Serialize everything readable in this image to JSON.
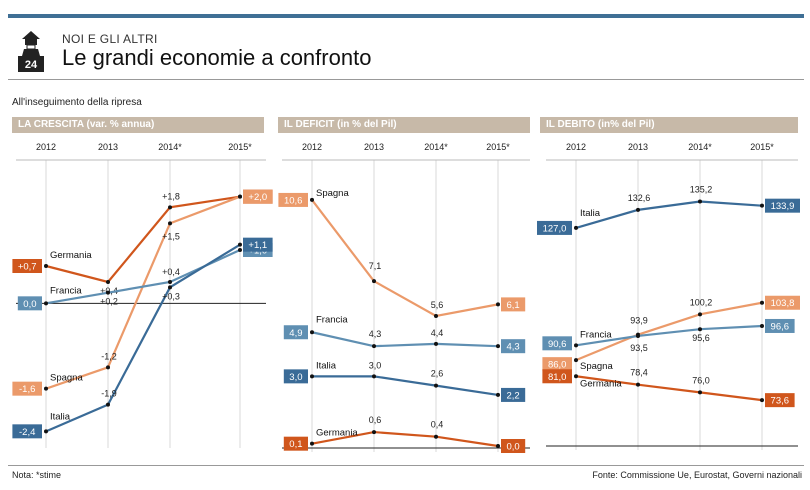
{
  "header": {
    "logo_number": "24",
    "kicker": "NOI E GLI ALTRI",
    "title": "Le grandi economie a confronto",
    "subtitle": "All'inseguimento della ripresa"
  },
  "footer": {
    "note": "Nota: *stime",
    "source": "Fonte: Commissione Ue, Eurostat, Governi nazionali"
  },
  "colors": {
    "header_bar": "#c7b9a8",
    "germania": "#d0561c",
    "spagna": "#eb9a6a",
    "francia": "#5f8fb2",
    "italia": "#3a6b97"
  },
  "chart_data": [
    {
      "type": "line",
      "title": "LA CRESCITA (var. % annua)",
      "categories": [
        "2012",
        "2013",
        "2014*",
        "2015*"
      ],
      "ylim": [
        -2.6,
        2.2
      ],
      "zero_line": true,
      "series": [
        {
          "name": "Germania",
          "color": "#d0561c",
          "values": [
            0.7,
            0.4,
            1.8,
            2.0
          ],
          "labels": [
            "+0,7",
            "+0,4",
            "+1,8",
            "+2,0"
          ]
        },
        {
          "name": "Spagna",
          "color": "#eb9a6a",
          "values": [
            -1.6,
            -1.2,
            1.5,
            2.0
          ],
          "labels": [
            "-1,6",
            "-1,2",
            "+1,5",
            "+2,0"
          ]
        },
        {
          "name": "Francia",
          "color": "#5f8fb2",
          "values": [
            0.0,
            0.2,
            0.4,
            1.0
          ],
          "labels": [
            "0,0",
            "+0,2",
            "+0,4",
            "+1,0"
          ]
        },
        {
          "name": "Italia",
          "color": "#3a6b97",
          "values": [
            -2.4,
            -1.9,
            0.3,
            1.1
          ],
          "labels": [
            "-2,4",
            "-1,9",
            "+0,3",
            "+1,1"
          ]
        }
      ]
    },
    {
      "type": "line",
      "title": "IL DEFICIT (in % del Pil)",
      "categories": [
        "2012",
        "2013",
        "2014*",
        "2015*"
      ],
      "ylim": [
        0,
        11.2
      ],
      "zero_line": false,
      "series": [
        {
          "name": "Spagna",
          "color": "#eb9a6a",
          "values": [
            10.6,
            7.1,
            5.6,
            6.1
          ],
          "labels": [
            "10,6",
            "7,1",
            "5,6",
            "6,1"
          ]
        },
        {
          "name": "Francia",
          "color": "#5f8fb2",
          "values": [
            4.9,
            4.3,
            4.4,
            4.3
          ],
          "labels": [
            "4,9",
            "4,3",
            "4,4",
            "4,3"
          ]
        },
        {
          "name": "Italia",
          "color": "#3a6b97",
          "values": [
            3.0,
            3.0,
            2.6,
            2.2
          ],
          "labels": [
            "3,0",
            "3,0",
            "2,6",
            "2,2"
          ]
        },
        {
          "name": "Germania",
          "color": "#d0561c",
          "values": [
            0.1,
            0.6,
            0.4,
            0.0
          ],
          "labels": [
            "0,1",
            "0,6",
            "0,4",
            "0,0"
          ]
        }
      ]
    },
    {
      "type": "line",
      "title": "IL DEBITO (in% del Pil)",
      "categories": [
        "2012",
        "2013",
        "2014*",
        "2015*"
      ],
      "ylim": [
        60,
        140
      ],
      "zero_line": false,
      "series": [
        {
          "name": "Italia",
          "color": "#3a6b97",
          "values": [
            127.0,
            132.6,
            135.2,
            133.9
          ],
          "labels": [
            "127,0",
            "132,6",
            "135,2",
            "133,9"
          ]
        },
        {
          "name": "Spagna",
          "color": "#eb9a6a",
          "values": [
            86.0,
            93.9,
            100.2,
            103.8
          ],
          "labels": [
            "86,0",
            "93,9",
            "100,2",
            "103,8"
          ]
        },
        {
          "name": "Francia",
          "color": "#5f8fb2",
          "values": [
            90.6,
            93.5,
            95.6,
            96.6
          ],
          "labels": [
            "90,6",
            "93,5",
            "95,6",
            "96,6"
          ]
        },
        {
          "name": "Germania",
          "color": "#d0561c",
          "values": [
            81.0,
            78.4,
            76.0,
            73.6
          ],
          "labels": [
            "81,0",
            "78,4",
            "76,0",
            "73,6"
          ]
        }
      ]
    }
  ]
}
